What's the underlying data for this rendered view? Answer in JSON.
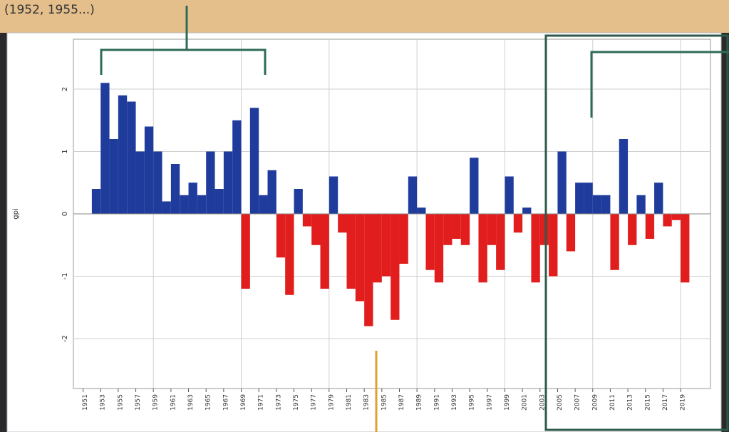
{
  "chart_data": {
    "type": "bar",
    "annotation": "(1952, 1955...)",
    "y_label": "gpi",
    "x": [
      1952,
      1953,
      1954,
      1955,
      1956,
      1957,
      1958,
      1959,
      1960,
      1961,
      1962,
      1963,
      1964,
      1965,
      1966,
      1967,
      1968,
      1969,
      1970,
      1971,
      1972,
      1973,
      1974,
      1975,
      1976,
      1977,
      1978,
      1979,
      1980,
      1981,
      1982,
      1983,
      1984,
      1985,
      1986,
      1987,
      1988,
      1989,
      1990,
      1991,
      1992,
      1993,
      1994,
      1995,
      1996,
      1997,
      1998,
      1999,
      2000,
      2001,
      2002,
      2003,
      2004,
      2005,
      2006,
      2007,
      2008,
      2009,
      2010,
      2011,
      2012,
      2013,
      2014,
      2015,
      2016,
      2017,
      2018,
      2019
    ],
    "values": [
      0.4,
      2.1,
      1.2,
      1.9,
      1.8,
      1.0,
      1.4,
      1.0,
      0.2,
      0.8,
      0.3,
      0.5,
      0.3,
      1.0,
      0.4,
      1.0,
      1.5,
      -1.2,
      1.7,
      0.3,
      0.7,
      -0.7,
      -1.3,
      0.4,
      -0.2,
      -0.5,
      -1.2,
      0.6,
      -0.3,
      -1.2,
      -1.4,
      -1.8,
      -1.1,
      -1.0,
      -1.7,
      -0.8,
      0.6,
      0.1,
      -0.9,
      -1.1,
      -0.5,
      -0.4,
      -0.5,
      0.9,
      -1.1,
      -0.5,
      -0.9,
      0.6,
      -0.3,
      0.1,
      -1.1,
      -0.5,
      -1.0,
      1.0,
      -0.6,
      0.5,
      0.5,
      0.3,
      0.3,
      -0.9,
      1.2,
      -0.5,
      0.3,
      -0.4,
      0.5,
      -0.2,
      -0.1,
      -1.1
    ],
    "positive_color": "#1f3c9c",
    "negative_color": "#e11d1d",
    "xlim": [
      1949.9,
      2022.4
    ],
    "ylim": [
      -2.8,
      2.8
    ],
    "xticks": [
      1951,
      1953,
      1955,
      1957,
      1959,
      1961,
      1963,
      1965,
      1967,
      1969,
      1971,
      1973,
      1975,
      1977,
      1979,
      1981,
      1983,
      1985,
      1987,
      1989,
      1991,
      1993,
      1995,
      1997,
      1999,
      2001,
      2003,
      2005,
      2007,
      2009,
      2011,
      2013,
      2015,
      2017,
      2019
    ],
    "xgrid": [
      1959,
      1969,
      1979,
      1989,
      1999,
      2009,
      2019
    ],
    "yticks": [
      -2,
      -1,
      0,
      1,
      2
    ],
    "grid": true
  }
}
